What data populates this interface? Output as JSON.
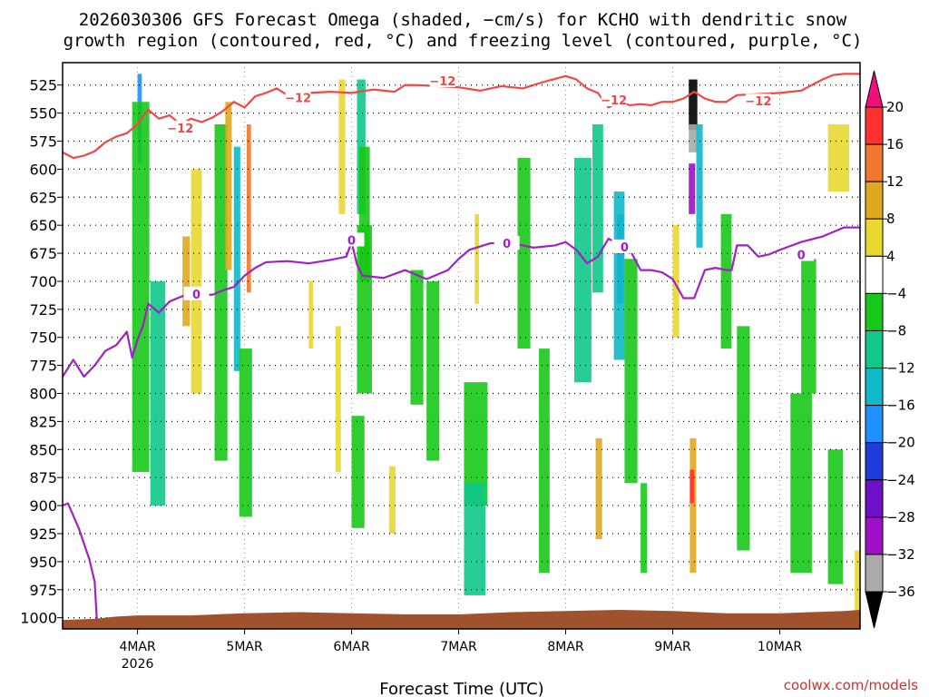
{
  "chart_data": {
    "type": "heatmap",
    "title_line1": "2026030306 GFS Forecast Omega (shaded, −cm/s) for KCHO with dendritic snow",
    "title_line2": "growth region (contoured, red, °C) and freezing level (contoured, purple, °C)",
    "xlabel": "Forecast Time (UTC)",
    "credit": "coolwx.com/models",
    "y_ticks": [
      525,
      550,
      575,
      600,
      625,
      650,
      675,
      700,
      725,
      750,
      775,
      800,
      825,
      850,
      875,
      900,
      925,
      950,
      975,
      1000
    ],
    "ylim": [
      1010,
      505
    ],
    "xlim": [
      -0.7,
      6.75
    ],
    "x_ticks": [
      {
        "pos": 0,
        "label": "4MAR",
        "sub": "2026"
      },
      {
        "pos": 1,
        "label": "5MAR",
        "sub": ""
      },
      {
        "pos": 2,
        "label": "6MAR",
        "sub": ""
      },
      {
        "pos": 3,
        "label": "7MAR",
        "sub": ""
      },
      {
        "pos": 4,
        "label": "8MAR",
        "sub": ""
      },
      {
        "pos": 5,
        "label": "9MAR",
        "sub": ""
      },
      {
        "pos": 6,
        "label": "10MAR",
        "sub": ""
      }
    ],
    "colorbar": {
      "labels": [
        "20",
        "16",
        "12",
        "8",
        "4",
        "−4",
        "−8",
        "−12",
        "−16",
        "−20",
        "−24",
        "−28",
        "−32",
        "−36"
      ],
      "colors": [
        "#f0107c",
        "#ff3030",
        "#f07830",
        "#e0a820",
        "#e8d830",
        "#ffffff",
        "#18c818",
        "#10c888",
        "#10b8c8",
        "#1e90ff",
        "#1e3cd8",
        "#7010c8",
        "#a010c8",
        "#aaaaaa",
        "#000000"
      ],
      "bands": [
        {
          "lo": 16,
          "hi": 20,
          "color": "#ff3030"
        },
        {
          "lo": 12,
          "hi": 16,
          "color": "#f07830"
        },
        {
          "lo": 8,
          "hi": 12,
          "color": "#e0a820"
        },
        {
          "lo": 4,
          "hi": 8,
          "color": "#e8d830"
        },
        {
          "lo": -4,
          "hi": 4,
          "color": "#ffffff"
        },
        {
          "lo": -8,
          "hi": -4,
          "color": "#18c818"
        },
        {
          "lo": -12,
          "hi": -8,
          "color": "#10c888"
        },
        {
          "lo": -16,
          "hi": -12,
          "color": "#10b8c8"
        },
        {
          "lo": -20,
          "hi": -16,
          "color": "#1e90ff"
        },
        {
          "lo": -24,
          "hi": -20,
          "color": "#1e3cd8"
        },
        {
          "lo": -28,
          "hi": -24,
          "color": "#7010c8"
        },
        {
          "lo": -32,
          "hi": -28,
          "color": "#a010c8"
        },
        {
          "lo": -36,
          "hi": -32,
          "color": "#aaaaaa"
        }
      ]
    },
    "terrain_color": "#a0522d",
    "terrain_pressure": [
      1002,
      1001,
      999,
      998,
      998,
      996,
      995,
      996,
      997,
      997,
      995,
      994,
      993,
      994,
      996,
      996,
      995,
      994,
      993
    ],
    "terrain_x": [
      -0.7,
      -0.4,
      -0.2,
      0,
      0.5,
      1,
      1.5,
      2,
      2.5,
      3,
      3.5,
      4,
      4.5,
      5,
      5.5,
      6,
      6.3,
      6.6,
      6.75
    ],
    "dgz_contour": {
      "color": "#f04848",
      "label": "−12",
      "label_positions": [
        {
          "x": 0.4,
          "p": 564
        },
        {
          "x": 1.5,
          "p": 537
        },
        {
          "x": 2.85,
          "p": 522
        },
        {
          "x": 4.45,
          "p": 539
        },
        {
          "x": 5.8,
          "p": 540
        }
      ],
      "x": [
        -0.7,
        -0.6,
        -0.5,
        -0.4,
        -0.3,
        -0.2,
        -0.1,
        0.0,
        0.05,
        0.1,
        0.2,
        0.3,
        0.4,
        0.5,
        0.6,
        0.7,
        0.8,
        0.9,
        1.0,
        1.1,
        1.2,
        1.3,
        1.4,
        1.5,
        1.6,
        1.8,
        2.0,
        2.2,
        2.4,
        2.5,
        2.6,
        2.8,
        3.0,
        3.2,
        3.4,
        3.6,
        3.8,
        4.0,
        4.1,
        4.2,
        4.3,
        4.4,
        4.5,
        4.6,
        4.7,
        4.8,
        4.9,
        5.0,
        5.1,
        5.2,
        5.3,
        5.4,
        5.5,
        5.6,
        5.8,
        6.0,
        6.2,
        6.3,
        6.4,
        6.5,
        6.6,
        6.75
      ],
      "p": [
        585,
        590,
        588,
        584,
        576,
        571,
        568,
        560,
        553,
        547,
        555,
        552,
        560,
        555,
        558,
        554,
        548,
        540,
        545,
        535,
        532,
        528,
        534,
        536,
        532,
        531,
        532,
        529,
        531,
        525,
        525,
        526,
        527,
        530,
        526,
        528,
        522,
        517,
        520,
        528,
        532,
        545,
        540,
        543,
        542,
        543,
        540,
        540,
        537,
        531,
        537,
        540,
        540,
        534,
        533,
        532,
        530,
        525,
        520,
        516,
        515,
        515
      ]
    },
    "freezing_contour": {
      "color": "#a020c8",
      "label": "0",
      "label_positions": [
        {
          "x": 0.55,
          "p": 712
        },
        {
          "x": 2.0,
          "p": 664
        },
        {
          "x": 3.45,
          "p": 667
        },
        {
          "x": 4.55,
          "p": 670
        },
        {
          "x": 6.2,
          "p": 677
        }
      ],
      "x": [
        -0.7,
        -0.6,
        -0.5,
        -0.4,
        -0.3,
        -0.2,
        -0.1,
        -0.05,
        0.0,
        0.05,
        0.1,
        0.2,
        0.3,
        0.4,
        0.5,
        0.6,
        0.7,
        0.8,
        0.9,
        1.0,
        1.1,
        1.2,
        1.4,
        1.6,
        1.8,
        1.95,
        2.0,
        2.05,
        2.1,
        2.3,
        2.5,
        2.7,
        2.9,
        3.0,
        3.1,
        3.3,
        3.5,
        3.7,
        3.9,
        4.0,
        4.1,
        4.2,
        4.3,
        4.4,
        4.5,
        4.6,
        4.7,
        4.8,
        4.9,
        5.0,
        5.1,
        5.2,
        5.3,
        5.4,
        5.5,
        5.55,
        5.6,
        5.7,
        5.8,
        5.9,
        6.0,
        6.2,
        6.4,
        6.6,
        6.75
      ],
      "p": [
        785,
        770,
        785,
        775,
        762,
        757,
        745,
        768,
        752,
        740,
        720,
        728,
        718,
        714,
        710,
        712,
        712,
        708,
        705,
        695,
        688,
        683,
        682,
        684,
        681,
        678,
        665,
        685,
        695,
        697,
        690,
        698,
        690,
        680,
        672,
        666,
        666,
        670,
        668,
        665,
        672,
        684,
        678,
        662,
        667,
        672,
        690,
        690,
        692,
        698,
        715,
        715,
        690,
        688,
        690,
        690,
        668,
        668,
        678,
        676,
        672,
        665,
        660,
        652,
        652
      ]
    },
    "freezing_contour_lower": {
      "x": [
        -0.7,
        -0.65,
        -0.55,
        -0.45,
        -0.4,
        -0.38
      ],
      "p": [
        900,
        898,
        920,
        948,
        968,
        1002
      ]
    },
    "omega_cells": [
      {
        "x": 0.0,
        "p": 515,
        "w": 0.04,
        "h": 80,
        "v": -18
      },
      {
        "x": -0.05,
        "p": 540,
        "w": 0.16,
        "h": 330,
        "v": -7
      },
      {
        "x": 0.12,
        "p": 700,
        "w": 0.14,
        "h": 200,
        "v": -10
      },
      {
        "x": 0.42,
        "p": 660,
        "w": 0.07,
        "h": 80,
        "v": 10
      },
      {
        "x": 0.5,
        "p": 600,
        "w": 0.1,
        "h": 200,
        "v": 5
      },
      {
        "x": 0.72,
        "p": 560,
        "w": 0.12,
        "h": 300,
        "v": -6
      },
      {
        "x": 0.82,
        "p": 540,
        "w": 0.06,
        "h": 150,
        "v": 9
      },
      {
        "x": 0.9,
        "p": 580,
        "w": 0.06,
        "h": 200,
        "v": -13
      },
      {
        "x": 1.02,
        "p": 560,
        "w": 0.04,
        "h": 150,
        "v": 12
      },
      {
        "x": 0.95,
        "p": 760,
        "w": 0.12,
        "h": 150,
        "v": -6
      },
      {
        "x": 1.6,
        "p": 700,
        "w": 0.04,
        "h": 60,
        "v": 5
      },
      {
        "x": 1.85,
        "p": 740,
        "w": 0.05,
        "h": 130,
        "v": 6
      },
      {
        "x": 2.0,
        "p": 820,
        "w": 0.12,
        "h": 100,
        "v": -6
      },
      {
        "x": 2.05,
        "p": 650,
        "w": 0.14,
        "h": 150,
        "v": -7
      },
      {
        "x": 1.88,
        "p": 520,
        "w": 0.06,
        "h": 120,
        "v": 6
      },
      {
        "x": 2.05,
        "p": 520,
        "w": 0.08,
        "h": 120,
        "v": -12
      },
      {
        "x": 2.07,
        "p": 580,
        "w": 0.1,
        "h": 120,
        "v": -8
      },
      {
        "x": 2.35,
        "p": 865,
        "w": 0.06,
        "h": 60,
        "v": 6
      },
      {
        "x": 2.55,
        "p": 690,
        "w": 0.12,
        "h": 120,
        "v": -6
      },
      {
        "x": 2.7,
        "p": 700,
        "w": 0.12,
        "h": 160,
        "v": -6
      },
      {
        "x": 3.05,
        "p": 790,
        "w": 0.22,
        "h": 110,
        "v": -7
      },
      {
        "x": 3.05,
        "p": 880,
        "w": 0.2,
        "h": 100,
        "v": -9
      },
      {
        "x": 3.15,
        "p": 640,
        "w": 0.04,
        "h": 80,
        "v": 5
      },
      {
        "x": 3.55,
        "p": 590,
        "w": 0.12,
        "h": 170,
        "v": -6
      },
      {
        "x": 3.75,
        "p": 760,
        "w": 0.1,
        "h": 200,
        "v": -7
      },
      {
        "x": 4.08,
        "p": 590,
        "w": 0.16,
        "h": 200,
        "v": -9
      },
      {
        "x": 4.25,
        "p": 560,
        "w": 0.1,
        "h": 150,
        "v": -10
      },
      {
        "x": 4.48,
        "p": 640,
        "w": 0.06,
        "h": 80,
        "v": -20
      },
      {
        "x": 4.45,
        "p": 620,
        "w": 0.1,
        "h": 150,
        "v": -15
      },
      {
        "x": 4.28,
        "p": 840,
        "w": 0.06,
        "h": 90,
        "v": 9
      },
      {
        "x": 4.55,
        "p": 680,
        "w": 0.12,
        "h": 200,
        "v": -7
      },
      {
        "x": 4.7,
        "p": 880,
        "w": 0.06,
        "h": 80,
        "v": -6
      },
      {
        "x": 5.0,
        "p": 650,
        "w": 0.06,
        "h": 100,
        "v": 6
      },
      {
        "x": 5.15,
        "p": 520,
        "w": 0.08,
        "h": 45,
        "v": -38
      },
      {
        "x": 5.15,
        "p": 560,
        "w": 0.08,
        "h": 25,
        "v": -33
      },
      {
        "x": 5.15,
        "p": 595,
        "w": 0.06,
        "h": 45,
        "v": -30
      },
      {
        "x": 5.22,
        "p": 560,
        "w": 0.06,
        "h": 110,
        "v": -14
      },
      {
        "x": 5.16,
        "p": 840,
        "w": 0.06,
        "h": 120,
        "v": 11
      },
      {
        "x": 5.16,
        "p": 868,
        "w": 0.04,
        "h": 30,
        "v": 17
      },
      {
        "x": 5.45,
        "p": 640,
        "w": 0.1,
        "h": 120,
        "v": -7
      },
      {
        "x": 5.6,
        "p": 740,
        "w": 0.12,
        "h": 200,
        "v": -8
      },
      {
        "x": 6.1,
        "p": 800,
        "w": 0.2,
        "h": 160,
        "v": -7
      },
      {
        "x": 6.2,
        "p": 680,
        "w": 0.14,
        "h": 120,
        "v": -8
      },
      {
        "x": 6.45,
        "p": 560,
        "w": 0.2,
        "h": 60,
        "v": 5
      },
      {
        "x": 6.45,
        "p": 850,
        "w": 0.14,
        "h": 120,
        "v": -7
      },
      {
        "x": 6.7,
        "p": 940,
        "w": 0.08,
        "h": 80,
        "v": 6
      }
    ]
  }
}
